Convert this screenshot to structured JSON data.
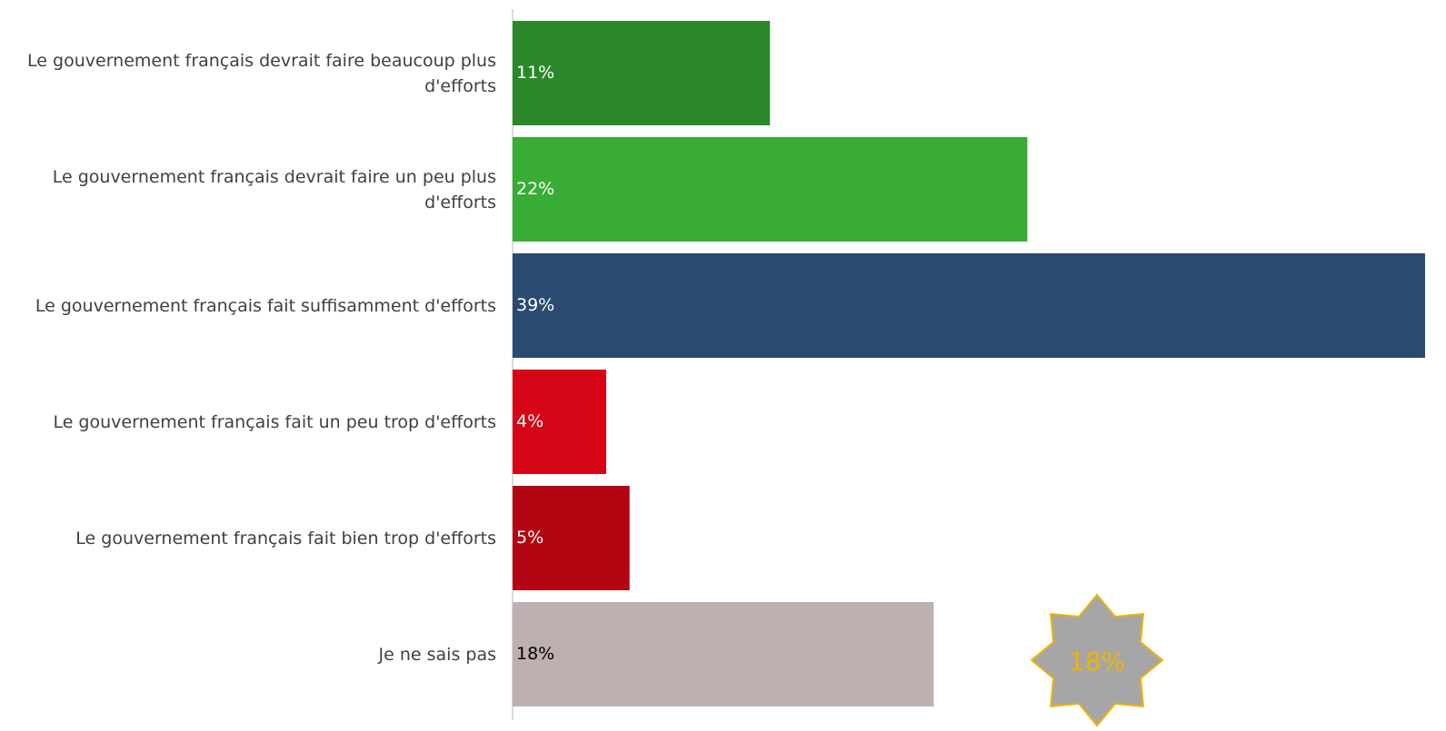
{
  "chart_data": {
    "type": "bar",
    "orientation": "horizontal",
    "categories": [
      "Le gouvernement français devrait faire beaucoup plus d'efforts",
      "Le gouvernement français devrait faire un peu plus d'efforts",
      "Le gouvernement français fait suffisamment d'efforts",
      "Le gouvernement français fait un peu trop d'efforts",
      "Le gouvernement français fait bien trop d'efforts",
      "Je ne sais pas"
    ],
    "values": [
      11,
      22,
      39,
      4,
      5,
      18
    ],
    "value_labels": [
      "11%",
      "22%",
      "39%",
      "4%",
      "5%",
      "18%"
    ],
    "colors": [
      "#2a882a",
      "#38ac35",
      "#2b4a6f",
      "#d50515",
      "#b30613",
      "#bdb0ae"
    ],
    "annotation": "18%"
  }
}
